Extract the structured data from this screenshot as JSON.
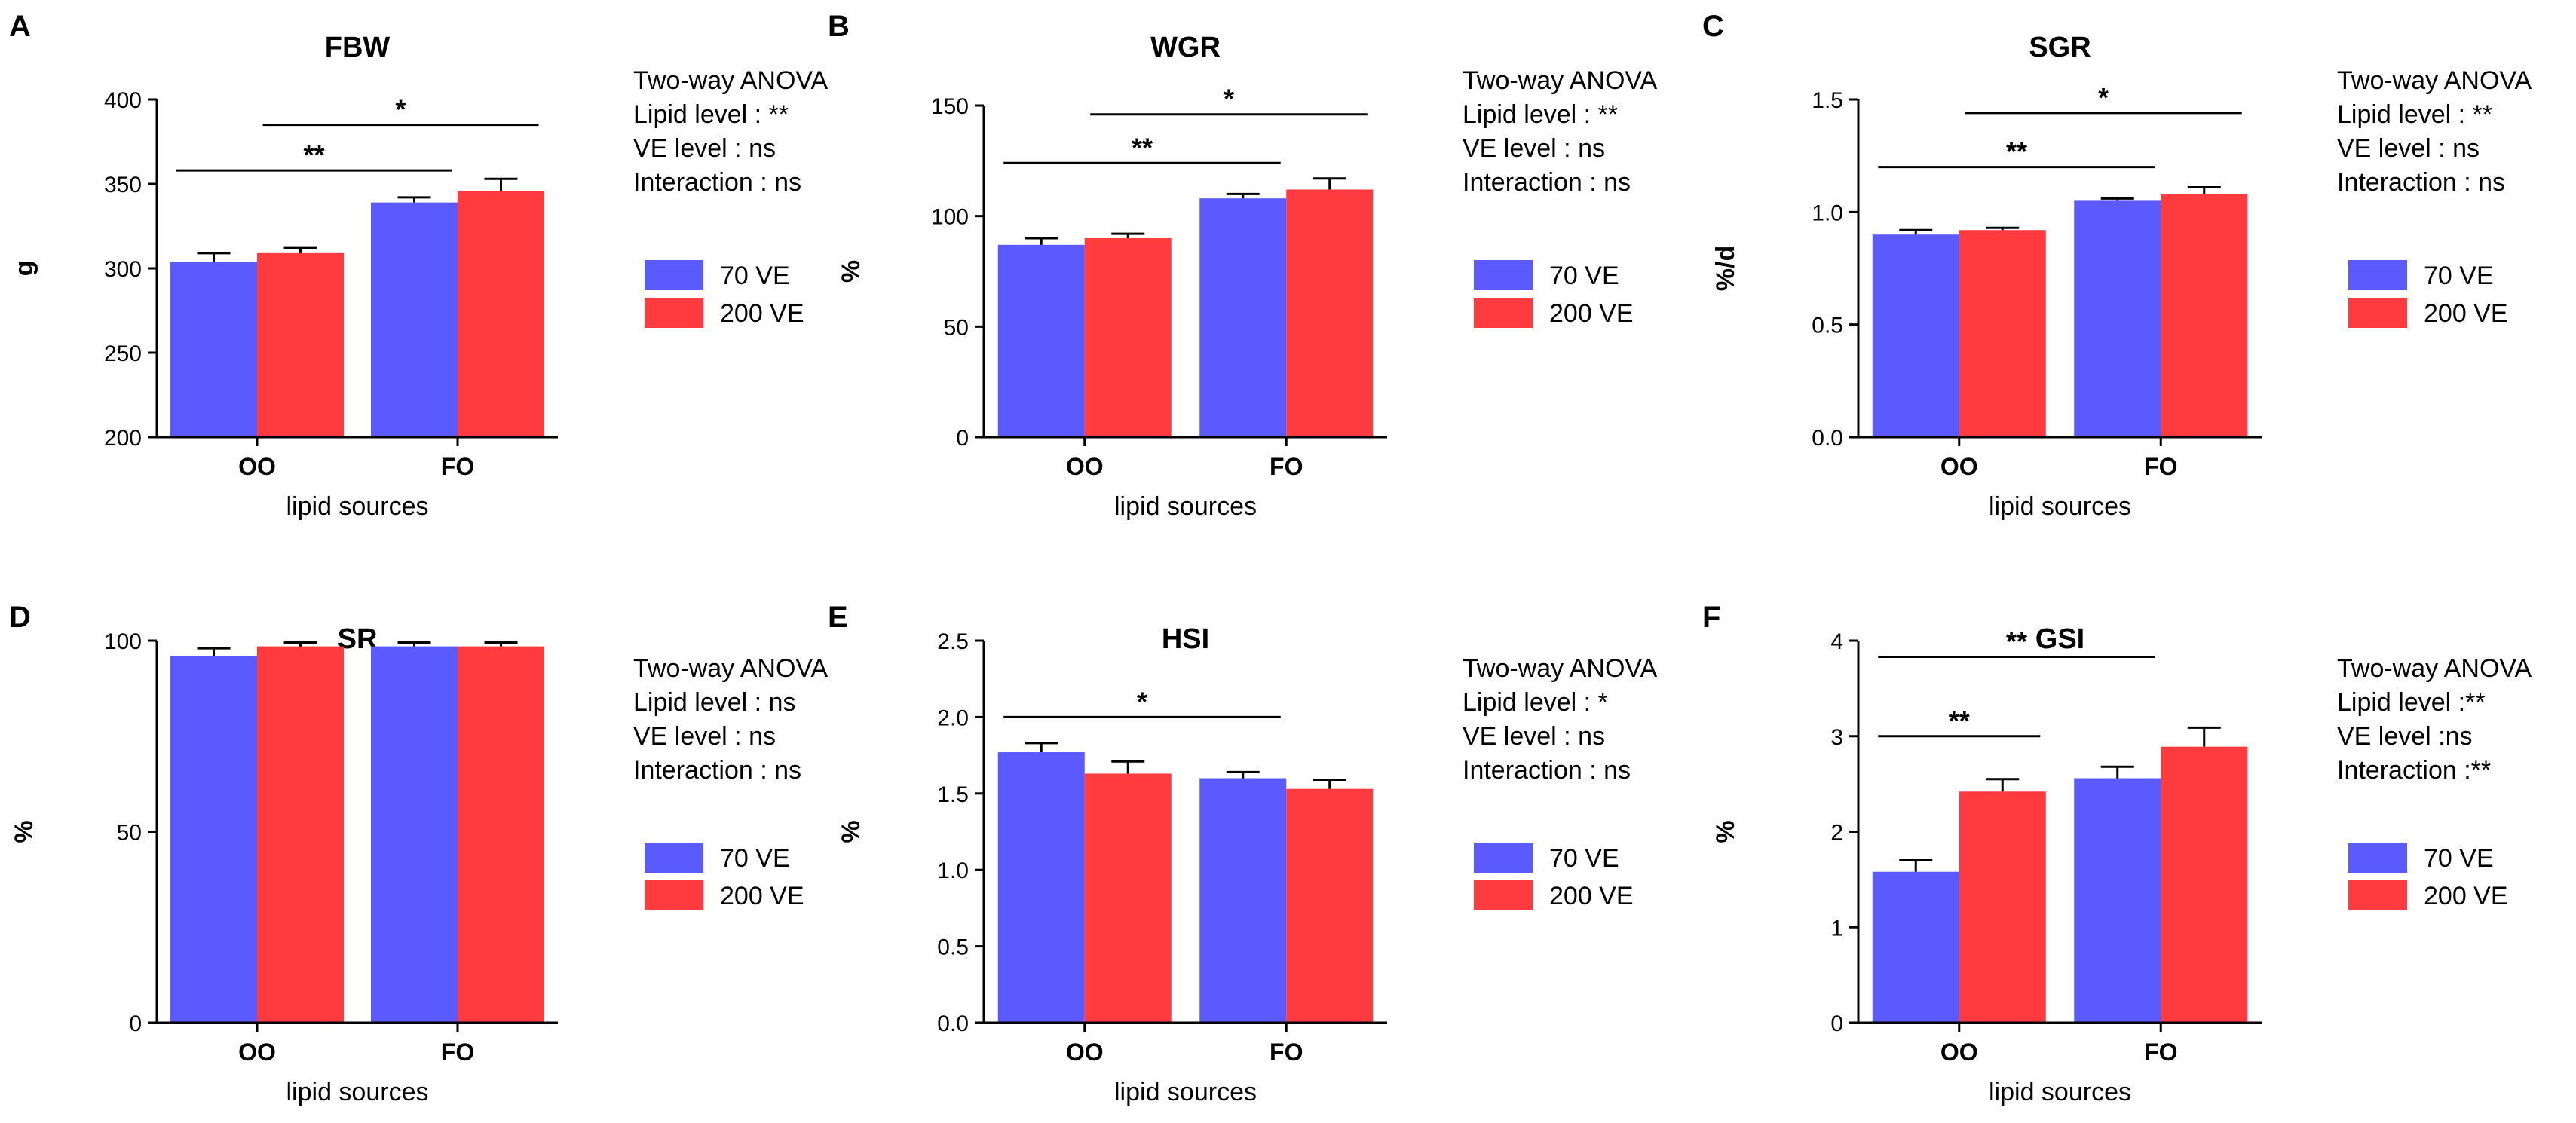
{
  "figure": {
    "colors": {
      "ve70": "#5a5aff",
      "ve200": "#ff3b40"
    },
    "legend": [
      "70   VE",
      "200 VE"
    ],
    "anova_heading": "Two-way ANOVA"
  },
  "chart_data": [
    {
      "panel": "A",
      "type": "bar",
      "title": "FBW",
      "xlabel": "lipid sources",
      "ylabel": "g",
      "ylim": [
        200,
        400
      ],
      "yticks": [
        "200",
        "250",
        "300",
        "350",
        "400"
      ],
      "categories": [
        "OO",
        "FO"
      ],
      "series": [
        {
          "name": "70   VE",
          "values": [
            304,
            339
          ],
          "errors": [
            5,
            3
          ]
        },
        {
          "name": "200 VE",
          "values": [
            309,
            346
          ],
          "errors": [
            3,
            7
          ]
        }
      ],
      "stats": [
        "Two-way ANOVA",
        "Lipid level  : **",
        "VE    level  : ns",
        "Interaction : ns"
      ],
      "significance": [
        {
          "from": [
            0,
            0
          ],
          "to": [
            1,
            0
          ],
          "y": 358,
          "label": "**"
        },
        {
          "from": [
            0,
            1
          ],
          "to": [
            1,
            1
          ],
          "y": 385,
          "label": "*"
        }
      ]
    },
    {
      "panel": "B",
      "type": "bar",
      "title": "WGR",
      "xlabel": "lipid sources",
      "ylabel": "%",
      "ylim": [
        0,
        150
      ],
      "yticks": [
        "0",
        "50",
        "100",
        "150"
      ],
      "categories": [
        "OO",
        "FO"
      ],
      "series": [
        {
          "name": "70   VE",
          "values": [
            87,
            108
          ],
          "errors": [
            3,
            2
          ]
        },
        {
          "name": "200 VE",
          "values": [
            90,
            112
          ],
          "errors": [
            2,
            5
          ]
        }
      ],
      "stats": [
        "Two-way ANOVA",
        "Lipid level  : **",
        "VE    level  : ns",
        "Interaction : ns"
      ],
      "significance": [
        {
          "from": [
            0,
            0
          ],
          "to": [
            1,
            0
          ],
          "y": 124,
          "label": "**"
        },
        {
          "from": [
            0,
            1
          ],
          "to": [
            1,
            1
          ],
          "y": 146,
          "label": "*"
        }
      ]
    },
    {
      "panel": "C",
      "type": "bar",
      "title": "SGR",
      "xlabel": "lipid sources",
      "ylabel": "%/d",
      "ylim": [
        0,
        1.5
      ],
      "yticks": [
        "0.0",
        "0.5",
        "1.0",
        "1.5"
      ],
      "categories": [
        "OO",
        "FO"
      ],
      "series": [
        {
          "name": "70   VE",
          "values": [
            0.9,
            1.05
          ],
          "errors": [
            0.02,
            0.01
          ]
        },
        {
          "name": "200 VE",
          "values": [
            0.92,
            1.08
          ],
          "errors": [
            0.01,
            0.03
          ]
        }
      ],
      "stats": [
        "Two-way ANOVA",
        "Lipid level  : **",
        "VE    level  : ns",
        "Interaction : ns"
      ],
      "significance": [
        {
          "from": [
            0,
            0
          ],
          "to": [
            1,
            0
          ],
          "y": 1.2,
          "label": "**"
        },
        {
          "from": [
            0,
            1
          ],
          "to": [
            1,
            1
          ],
          "y": 1.44,
          "label": "*"
        }
      ]
    },
    {
      "panel": "D",
      "type": "bar",
      "title": "SR",
      "xlabel": "lipid sources",
      "ylabel": "%",
      "ylim": [
        0,
        100
      ],
      "yticks": [
        "0",
        "50",
        "100"
      ],
      "categories": [
        "OO",
        "FO"
      ],
      "series": [
        {
          "name": "70   VE",
          "values": [
            96,
            98.5
          ],
          "errors": [
            2,
            1
          ]
        },
        {
          "name": "200 VE",
          "values": [
            98.5,
            98.5
          ],
          "errors": [
            1,
            1
          ]
        }
      ],
      "stats": [
        "Two-way ANOVA",
        "Lipid level  : ns",
        "VE    level  : ns",
        "Interaction : ns"
      ],
      "significance": []
    },
    {
      "panel": "E",
      "type": "bar",
      "title": "HSI",
      "xlabel": "lipid sources",
      "ylabel": "%",
      "ylim": [
        0,
        2.5
      ],
      "yticks": [
        "0.0",
        "0.5",
        "1.0",
        "1.5",
        "2.0",
        "2.5"
      ],
      "categories": [
        "OO",
        "FO"
      ],
      "series": [
        {
          "name": "70   VE",
          "values": [
            1.77,
            1.6
          ],
          "errors": [
            0.06,
            0.04
          ]
        },
        {
          "name": "200 VE",
          "values": [
            1.63,
            1.53
          ],
          "errors": [
            0.08,
            0.06
          ]
        }
      ],
      "stats": [
        "Two-way ANOVA",
        "Lipid level  : *",
        "VE    level  : ns",
        "Interaction : ns"
      ],
      "significance": [
        {
          "from": [
            0,
            0
          ],
          "to": [
            1,
            0
          ],
          "y": 2.0,
          "label": "*"
        }
      ]
    },
    {
      "panel": "F",
      "type": "bar",
      "title": "GSI",
      "xlabel": "lipid sources",
      "ylabel": "%",
      "ylim": [
        0,
        4
      ],
      "yticks": [
        "0",
        "1",
        "2",
        "3",
        "4"
      ],
      "categories": [
        "OO",
        "FO"
      ],
      "series": [
        {
          "name": "70   VE",
          "values": [
            1.58,
            2.56
          ],
          "errors": [
            0.12,
            0.12
          ]
        },
        {
          "name": "200 VE",
          "values": [
            2.42,
            2.89
          ],
          "errors": [
            0.13,
            0.2
          ]
        }
      ],
      "stats": [
        "Two-way ANOVA",
        "Lipid level  :**",
        "VE    level  :ns",
        "Interaction :**"
      ],
      "significance": [
        {
          "from": [
            0,
            0
          ],
          "to": [
            0,
            1
          ],
          "y": 3.0,
          "label": "**"
        },
        {
          "from": [
            0,
            0
          ],
          "to": [
            1,
            0
          ],
          "y": 3.83,
          "label": "**"
        }
      ]
    }
  ]
}
